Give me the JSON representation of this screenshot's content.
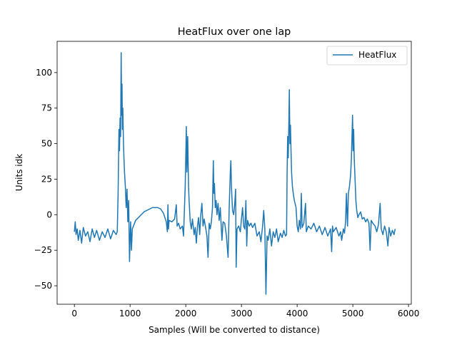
{
  "chart_data": {
    "type": "line",
    "title": "HeatFlux over one lap",
    "xlabel": "Samples (Will be converted to distance)",
    "ylabel": "Units idk",
    "xlim": [
      -310,
      6050
    ],
    "ylim": [
      -63,
      122
    ],
    "xticks": [
      0,
      1000,
      2000,
      3000,
      4000,
      5000,
      6000
    ],
    "xtick_labels": [
      "0",
      "1000",
      "2000",
      "3000",
      "4000",
      "5000",
      "6000"
    ],
    "yticks": [
      -50,
      -25,
      0,
      25,
      50,
      75,
      100
    ],
    "ytick_labels": [
      "−50",
      "−25",
      "0",
      "25",
      "50",
      "75",
      "100"
    ],
    "grid": false,
    "legend_position": "top-right",
    "series": [
      {
        "name": "HeatFlux",
        "color": "#1f77b4",
        "points": [
          [
            0,
            -12
          ],
          [
            15,
            -5
          ],
          [
            30,
            -14
          ],
          [
            50,
            -10
          ],
          [
            70,
            -18
          ],
          [
            100,
            -11
          ],
          [
            130,
            -20
          ],
          [
            160,
            -9
          ],
          [
            200,
            -15
          ],
          [
            240,
            -12
          ],
          [
            280,
            -19
          ],
          [
            320,
            -10
          ],
          [
            360,
            -16
          ],
          [
            400,
            -11
          ],
          [
            450,
            -18
          ],
          [
            500,
            -12
          ],
          [
            550,
            -16
          ],
          [
            600,
            -10
          ],
          [
            650,
            -17
          ],
          [
            700,
            -11
          ],
          [
            750,
            -14
          ],
          [
            770,
            -12
          ],
          [
            785,
            15
          ],
          [
            800,
            60
          ],
          [
            810,
            45
          ],
          [
            820,
            68
          ],
          [
            830,
            55
          ],
          [
            840,
            114
          ],
          [
            848,
            70
          ],
          [
            855,
            92
          ],
          [
            862,
            60
          ],
          [
            870,
            75
          ],
          [
            880,
            52
          ],
          [
            890,
            40
          ],
          [
            900,
            30
          ],
          [
            915,
            20
          ],
          [
            930,
            5
          ],
          [
            945,
            18
          ],
          [
            960,
            -5
          ],
          [
            975,
            10
          ],
          [
            990,
            -33
          ],
          [
            1000,
            -18
          ],
          [
            1010,
            -5
          ],
          [
            1025,
            -25
          ],
          [
            1040,
            -10
          ],
          [
            1060,
            -8
          ],
          [
            1080,
            -6
          ],
          [
            1100,
            -4
          ],
          [
            1150,
            -2
          ],
          [
            1200,
            0
          ],
          [
            1250,
            2
          ],
          [
            1300,
            3
          ],
          [
            1350,
            4
          ],
          [
            1400,
            5
          ],
          [
            1450,
            5
          ],
          [
            1500,
            5
          ],
          [
            1550,
            4
          ],
          [
            1600,
            1
          ],
          [
            1650,
            -5
          ],
          [
            1670,
            -12
          ],
          [
            1680,
            7
          ],
          [
            1690,
            -10
          ],
          [
            1700,
            -4
          ],
          [
            1750,
            -5
          ],
          [
            1800,
            -3
          ],
          [
            1830,
            7
          ],
          [
            1845,
            -8
          ],
          [
            1870,
            -6
          ],
          [
            1900,
            -10
          ],
          [
            1940,
            -8
          ],
          [
            1960,
            -15
          ],
          [
            1990,
            20
          ],
          [
            2000,
            40
          ],
          [
            2010,
            62
          ],
          [
            2020,
            30
          ],
          [
            2035,
            55
          ],
          [
            2050,
            20
          ],
          [
            2060,
            10
          ],
          [
            2080,
            -5
          ],
          [
            2100,
            -10
          ],
          [
            2120,
            -3
          ],
          [
            2150,
            -14
          ],
          [
            2170,
            -9
          ],
          [
            2190,
            -20
          ],
          [
            2210,
            -8
          ],
          [
            2230,
            -2
          ],
          [
            2250,
            -14
          ],
          [
            2270,
            0
          ],
          [
            2290,
            8
          ],
          [
            2310,
            -8
          ],
          [
            2330,
            -3
          ],
          [
            2360,
            -10
          ],
          [
            2380,
            -15
          ],
          [
            2400,
            -30
          ],
          [
            2420,
            -6
          ],
          [
            2440,
            -10
          ],
          [
            2460,
            -5
          ],
          [
            2480,
            5
          ],
          [
            2495,
            38
          ],
          [
            2505,
            15
          ],
          [
            2515,
            22
          ],
          [
            2530,
            5
          ],
          [
            2545,
            10
          ],
          [
            2560,
            0
          ],
          [
            2580,
            8
          ],
          [
            2600,
            -4
          ],
          [
            2620,
            5
          ],
          [
            2650,
            -18
          ],
          [
            2670,
            -5
          ],
          [
            2700,
            -6
          ],
          [
            2730,
            -15
          ],
          [
            2760,
            -30
          ],
          [
            2780,
            5
          ],
          [
            2800,
            30
          ],
          [
            2810,
            38
          ],
          [
            2820,
            20
          ],
          [
            2840,
            3
          ],
          [
            2860,
            0
          ],
          [
            2880,
            8
          ],
          [
            2895,
            18
          ],
          [
            2905,
            -37
          ],
          [
            2920,
            -10
          ],
          [
            2950,
            -8
          ],
          [
            2980,
            -12
          ],
          [
            3000,
            -3
          ],
          [
            3020,
            5
          ],
          [
            3040,
            -8
          ],
          [
            3060,
            -10
          ],
          [
            3080,
            10
          ],
          [
            3095,
            -22
          ],
          [
            3110,
            -4
          ],
          [
            3140,
            -8
          ],
          [
            3170,
            -6
          ],
          [
            3200,
            -9
          ],
          [
            3240,
            -6
          ],
          [
            3280,
            -15
          ],
          [
            3320,
            -12
          ],
          [
            3350,
            -19
          ],
          [
            3380,
            -8
          ],
          [
            3400,
            3
          ],
          [
            3420,
            -10
          ],
          [
            3440,
            -56
          ],
          [
            3460,
            -15
          ],
          [
            3480,
            -18
          ],
          [
            3510,
            -10
          ],
          [
            3540,
            -22
          ],
          [
            3570,
            -12
          ],
          [
            3600,
            -16
          ],
          [
            3630,
            -10
          ],
          [
            3660,
            -19
          ],
          [
            3700,
            -13
          ],
          [
            3730,
            -16
          ],
          [
            3760,
            -11
          ],
          [
            3790,
            -15
          ],
          [
            3810,
            -14
          ],
          [
            3820,
            30
          ],
          [
            3830,
            55
          ],
          [
            3840,
            40
          ],
          [
            3850,
            62
          ],
          [
            3860,
            88
          ],
          [
            3870,
            50
          ],
          [
            3880,
            63
          ],
          [
            3890,
            45
          ],
          [
            3900,
            30
          ],
          [
            3915,
            20
          ],
          [
            3930,
            15
          ],
          [
            3950,
            10
          ],
          [
            3980,
            5
          ],
          [
            4000,
            -8
          ],
          [
            4020,
            -12
          ],
          [
            4040,
            -4
          ],
          [
            4060,
            -10
          ],
          [
            4075,
            15
          ],
          [
            4090,
            -9
          ],
          [
            4120,
            -6
          ],
          [
            4150,
            8
          ],
          [
            4165,
            -12
          ],
          [
            4200,
            -8
          ],
          [
            4250,
            -10
          ],
          [
            4300,
            -6
          ],
          [
            4350,
            -12
          ],
          [
            4400,
            -8
          ],
          [
            4450,
            -14
          ],
          [
            4500,
            -9
          ],
          [
            4550,
            -15
          ],
          [
            4600,
            -10
          ],
          [
            4620,
            -26
          ],
          [
            4635,
            -8
          ],
          [
            4650,
            -12
          ],
          [
            4700,
            -9
          ],
          [
            4750,
            -15
          ],
          [
            4780,
            -12
          ],
          [
            4800,
            -18
          ],
          [
            4830,
            -10
          ],
          [
            4850,
            -13
          ],
          [
            4870,
            -5
          ],
          [
            4885,
            15
          ],
          [
            4895,
            2
          ],
          [
            4905,
            -8
          ],
          [
            4920,
            15
          ],
          [
            4940,
            20
          ],
          [
            4960,
            28
          ],
          [
            4975,
            40
          ],
          [
            4985,
            55
          ],
          [
            4995,
            70
          ],
          [
            5005,
            45
          ],
          [
            5015,
            60
          ],
          [
            5025,
            40
          ],
          [
            5040,
            25
          ],
          [
            5055,
            10
          ],
          [
            5070,
            3
          ],
          [
            5090,
            -2
          ],
          [
            5110,
            0
          ],
          [
            5140,
            2
          ],
          [
            5170,
            -3
          ],
          [
            5200,
            -2
          ],
          [
            5230,
            -5
          ],
          [
            5260,
            -3
          ],
          [
            5290,
            -6
          ],
          [
            5310,
            -25
          ],
          [
            5330,
            -4
          ],
          [
            5360,
            -6
          ],
          [
            5400,
            -8
          ],
          [
            5430,
            -12
          ],
          [
            5460,
            -7
          ],
          [
            5490,
            8
          ],
          [
            5510,
            -10
          ],
          [
            5540,
            -14
          ],
          [
            5570,
            -8
          ],
          [
            5600,
            -12
          ],
          [
            5630,
            -22
          ],
          [
            5650,
            -9
          ],
          [
            5680,
            -15
          ],
          [
            5710,
            -11
          ],
          [
            5740,
            -14
          ],
          [
            5760,
            -10
          ]
        ]
      }
    ]
  }
}
